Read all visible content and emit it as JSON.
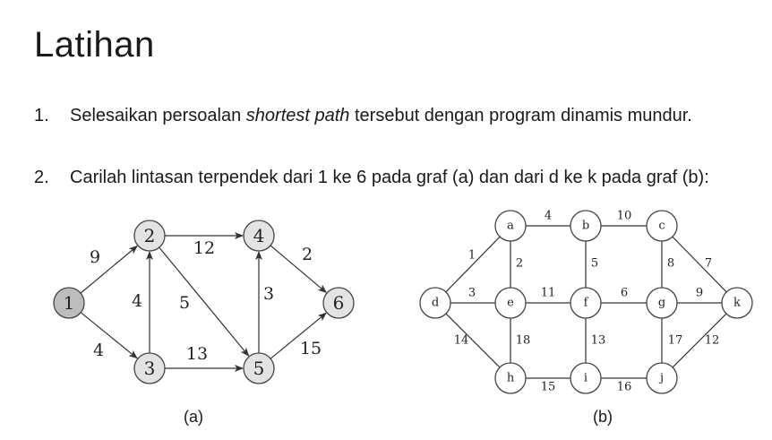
{
  "title": "Latihan",
  "items": [
    {
      "num": "1.",
      "text_before": "Selesaikan persoalan ",
      "emphasis": "shortest path",
      "text_after": " tersebut dengan program dinamis mundur."
    },
    {
      "num": "2.",
      "text": "Carilah lintasan terpendek dari  1 ke 6 pada graf (a) dan dari d ke k pada graf (b):"
    }
  ],
  "graph_a": {
    "caption": "(a)",
    "nodes": [
      {
        "id": "1",
        "label": "1",
        "fill": "#bdbdbd"
      },
      {
        "id": "2",
        "label": "2",
        "fill": "#e3e3e3"
      },
      {
        "id": "3",
        "label": "3",
        "fill": "#e3e3e3"
      },
      {
        "id": "4",
        "label": "4",
        "fill": "#e3e3e3"
      },
      {
        "id": "5",
        "label": "5",
        "fill": "#e3e3e3"
      },
      {
        "id": "6",
        "label": "6",
        "fill": "#e3e3e3"
      }
    ],
    "edges": [
      {
        "from": "1",
        "to": "2",
        "weight": "9"
      },
      {
        "from": "1",
        "to": "3",
        "weight": "4"
      },
      {
        "from": "3",
        "to": "2",
        "weight": "4"
      },
      {
        "from": "2",
        "to": "4",
        "weight": "12"
      },
      {
        "from": "2",
        "to": "5",
        "weight": "5"
      },
      {
        "from": "3",
        "to": "5",
        "weight": "13"
      },
      {
        "from": "5",
        "to": "4",
        "weight": "3"
      },
      {
        "from": "4",
        "to": "6",
        "weight": "2"
      },
      {
        "from": "5",
        "to": "6",
        "weight": "15"
      }
    ]
  },
  "graph_b": {
    "caption": "(b)",
    "nodes": [
      {
        "id": "a",
        "label": "a"
      },
      {
        "id": "b",
        "label": "b"
      },
      {
        "id": "c",
        "label": "c"
      },
      {
        "id": "d",
        "label": "d"
      },
      {
        "id": "e",
        "label": "e"
      },
      {
        "id": "f",
        "label": "f"
      },
      {
        "id": "g",
        "label": "g"
      },
      {
        "id": "k",
        "label": "k"
      },
      {
        "id": "h",
        "label": "h"
      },
      {
        "id": "i",
        "label": "i"
      },
      {
        "id": "j",
        "label": "j"
      }
    ],
    "edges": [
      {
        "from": "a",
        "to": "b",
        "weight": "4"
      },
      {
        "from": "b",
        "to": "c",
        "weight": "10"
      },
      {
        "from": "d",
        "to": "a",
        "weight": "1"
      },
      {
        "from": "a",
        "to": "e",
        "weight": "2"
      },
      {
        "from": "b",
        "to": "f",
        "weight": "5"
      },
      {
        "from": "c",
        "to": "g",
        "weight": "8"
      },
      {
        "from": "c",
        "to": "k",
        "weight": "7"
      },
      {
        "from": "d",
        "to": "e",
        "weight": "3"
      },
      {
        "from": "e",
        "to": "f",
        "weight": "11"
      },
      {
        "from": "f",
        "to": "g",
        "weight": "6"
      },
      {
        "from": "g",
        "to": "k",
        "weight": "9"
      },
      {
        "from": "d",
        "to": "h",
        "weight": "14"
      },
      {
        "from": "e",
        "to": "h",
        "weight": "18"
      },
      {
        "from": "f",
        "to": "i",
        "weight": "13"
      },
      {
        "from": "g",
        "to": "j",
        "weight": "17"
      },
      {
        "from": "j",
        "to": "k",
        "weight": "12"
      },
      {
        "from": "h",
        "to": "i",
        "weight": "15"
      },
      {
        "from": "i",
        "to": "j",
        "weight": "16"
      }
    ]
  }
}
